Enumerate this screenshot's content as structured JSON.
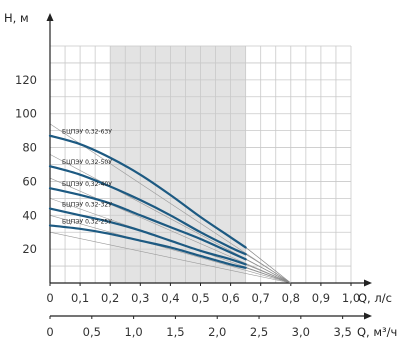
{
  "chart_data": {
    "type": "line",
    "x_axis": {
      "label": "Q, л/с",
      "ticks": [
        "0",
        "0,1",
        "0,2",
        "0,3",
        "0,4",
        "0,5",
        "0,6",
        "0,7",
        "0,8",
        "0,9",
        "1,0"
      ],
      "range": [
        0,
        1.0
      ]
    },
    "x2_axis": {
      "label": "Q, м³/ч",
      "ticks": [
        "0",
        "0,5",
        "1,0",
        "1,5",
        "2,0",
        "2,5",
        "3,0",
        "3,5"
      ],
      "range": [
        0,
        3.6
      ]
    },
    "y_axis": {
      "label": "H, м",
      "ticks": [
        "20",
        "40",
        "60",
        "80",
        "100",
        "120"
      ],
      "range": [
        0,
        140
      ]
    },
    "working_range": [
      0.2,
      0.65
    ],
    "grid": true,
    "series": [
      {
        "name": "БЦПЭУ 0,32-63У",
        "x": [
          0,
          0.1,
          0.2,
          0.3,
          0.4,
          0.5,
          0.6,
          0.65,
          0.8
        ],
        "y": [
          87,
          82,
          74,
          64,
          52,
          39,
          27,
          21,
          0
        ]
      },
      {
        "name": "БЦПЭУ 0,32-50У",
        "x": [
          0,
          0.1,
          0.2,
          0.3,
          0.4,
          0.5,
          0.6,
          0.65,
          0.8
        ],
        "y": [
          69,
          64,
          57,
          49,
          40,
          30,
          21,
          17,
          0
        ]
      },
      {
        "name": "БЦПЭУ 0,32-40У",
        "x": [
          0,
          0.1,
          0.2,
          0.3,
          0.4,
          0.5,
          0.6,
          0.65,
          0.8
        ],
        "y": [
          56,
          52,
          47,
          40,
          33,
          26,
          18,
          14,
          0
        ]
      },
      {
        "name": "БЦПЭУ 0,32-32У",
        "x": [
          0,
          0.1,
          0.2,
          0.3,
          0.4,
          0.5,
          0.6,
          0.65,
          0.8
        ],
        "y": [
          44,
          40,
          36,
          31,
          25,
          19,
          14,
          11,
          0
        ]
      },
      {
        "name": "БЦПЭУ 0,32-25У",
        "x": [
          0,
          0.1,
          0.2,
          0.3,
          0.4,
          0.5,
          0.6,
          0.65,
          0.8
        ],
        "y": [
          34,
          32,
          29,
          25,
          21,
          16,
          11,
          9,
          0
        ]
      }
    ],
    "colors": {
      "line": "#1d5a82",
      "grid": "#c9c9c9",
      "shade": "#e3e3e3",
      "axis": "#222222"
    }
  }
}
